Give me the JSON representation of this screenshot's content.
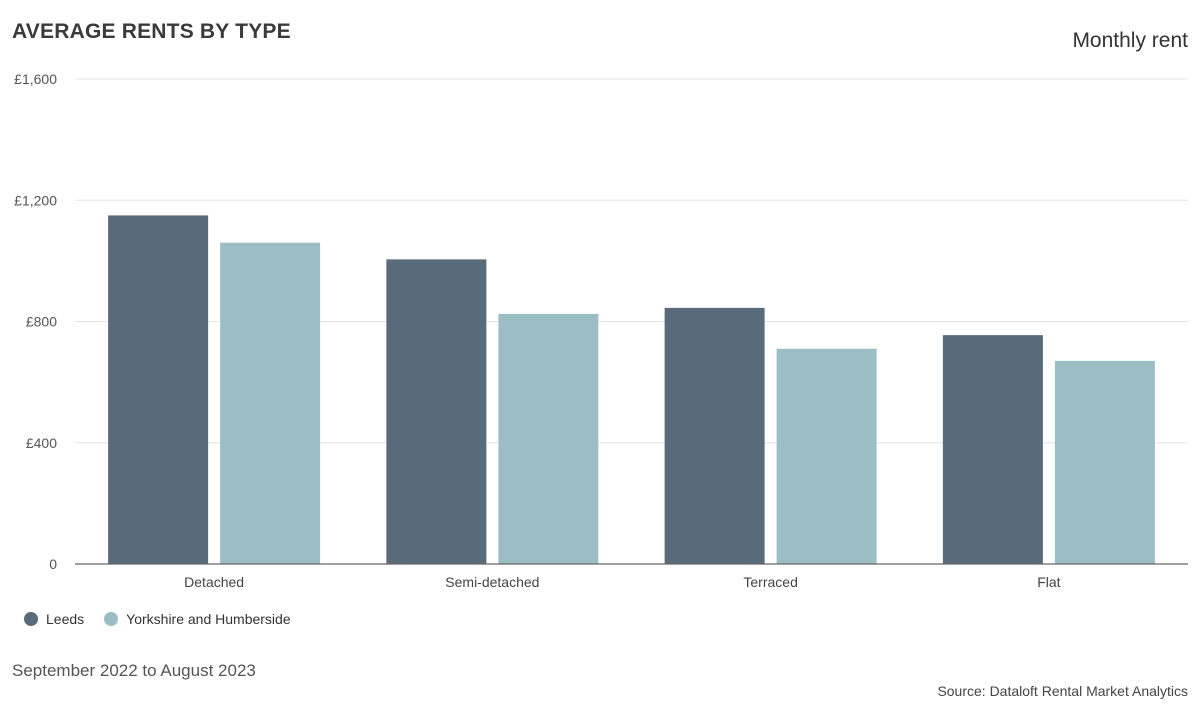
{
  "header": {
    "title": "AVERAGE RENTS BY TYPE",
    "subtitle": "Monthly rent"
  },
  "footer": {
    "period": "September 2022 to August 2023",
    "source": "Source: Dataloft Rental Market Analytics"
  },
  "chart_data": {
    "type": "bar",
    "categories": [
      "Detached",
      "Semi-detached",
      "Terraced",
      "Flat"
    ],
    "series": [
      {
        "name": "Leeds",
        "color": "#596a7a",
        "values": [
          1150,
          1005,
          845,
          755
        ]
      },
      {
        "name": "Yorkshire and Humberside",
        "color": "#9bbec4",
        "values": [
          1060,
          825,
          710,
          670
        ]
      }
    ],
    "yticks": [
      0,
      400,
      800,
      1200,
      1600
    ],
    "ytick_labels": [
      "0",
      "£400",
      "£800",
      "£1,200",
      "£1,600"
    ],
    "ylim": [
      0,
      1600
    ],
    "grid": true,
    "legend_position": "bottom-left"
  }
}
